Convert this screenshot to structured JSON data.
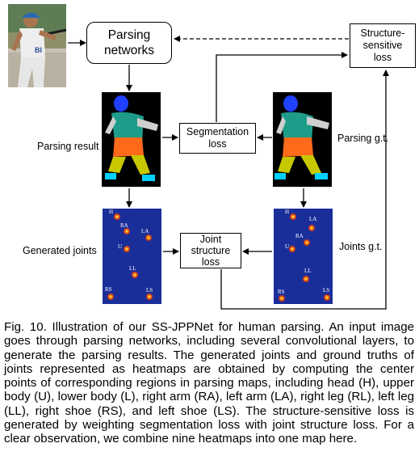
{
  "figure": {
    "boxes": {
      "parsing_networks": "Parsing\nnetworks",
      "structure_loss": "Structure-\nsensitive\nloss",
      "segmentation_loss": "Segmentation\nloss",
      "joint_structure_loss": "Joint\nstructure\nloss"
    },
    "labels": {
      "parsing_result": "Parsing result",
      "parsing_gt": "Parsing g.t.",
      "generated_joints": "Generated joints",
      "joints_gt": "Joints g.t."
    },
    "jersey_text": "BI",
    "joints_generated": [
      "H",
      "RA",
      "LA",
      "U",
      "LL",
      "RS",
      "LS"
    ],
    "joints_gt": [
      "H",
      "LA",
      "RA",
      "U",
      "LL",
      "RS",
      "LS"
    ]
  },
  "caption": {
    "number": "Fig. 10.",
    "text": "Illustration of our SS-JPPNet for human parsing. An input image goes through parsing networks, including several convolutional layers, to generate the parsing results. The generated joints and ground truths of joints represented as heatmaps are obtained by computing the center points of corresponding regions in parsing maps, including head (H), upper body (U), lower body (L), right arm (RA), left arm (LA), right leg (RL), left leg (LL), right shoe (RS), and left shoe (LS). The structure-sensitive loss is generated by weighting segmentation loss with joint structure loss. For a clear observation, we combine nine heatmaps into one map here."
  }
}
